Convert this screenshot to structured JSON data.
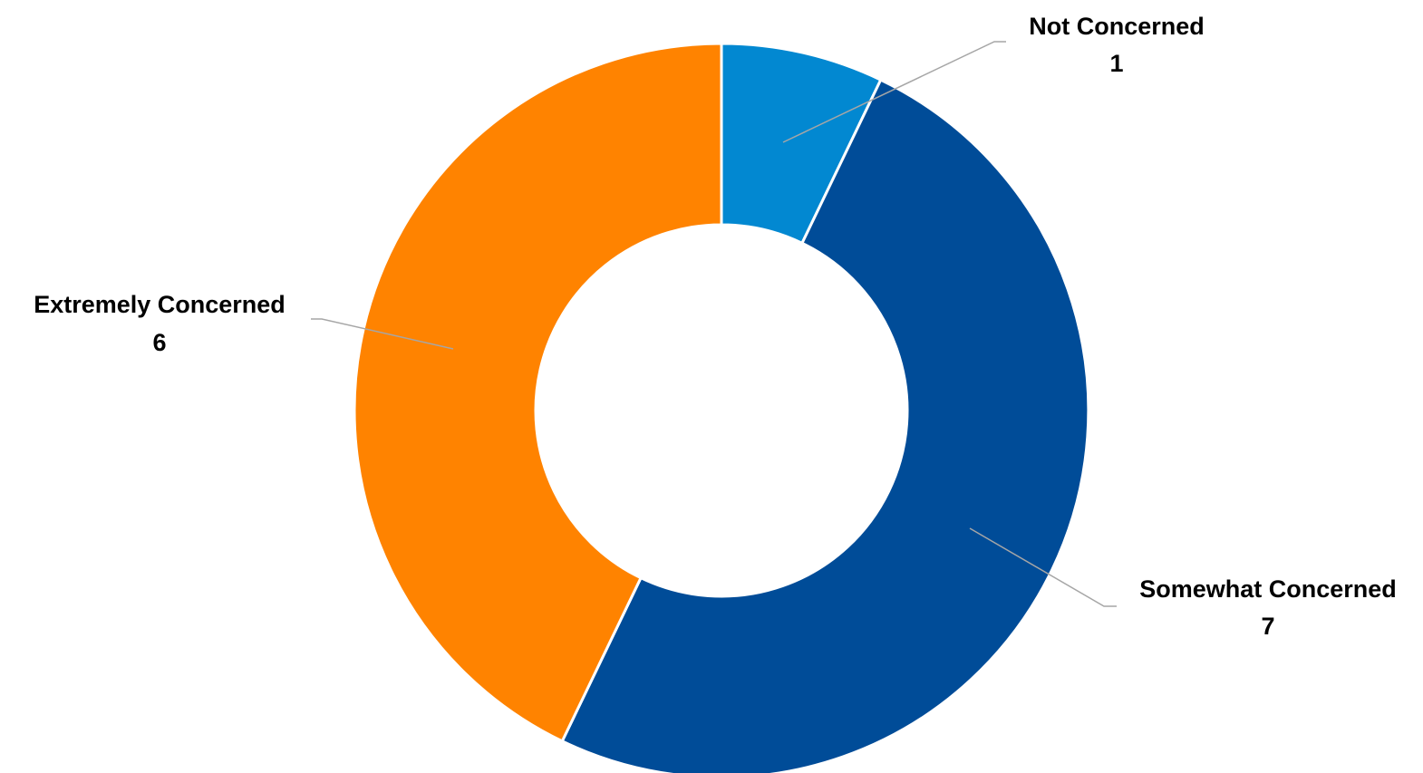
{
  "chart_data": {
    "type": "pie",
    "variant": "donut",
    "start_angle_deg": 0,
    "direction": "clockwise",
    "legend": "none",
    "data_labels": "category-and-value-outside-with-leader-lines",
    "slices": [
      {
        "category": "Not Concerned",
        "value": 1,
        "value_label": "1",
        "color": "#0288d1"
      },
      {
        "category": "Somewhat Concerned",
        "value": 7,
        "value_label": "7",
        "color": "#004c98"
      },
      {
        "category": "Extremely Concerned",
        "value": 6,
        "value_label": "6",
        "color": "#ff8300"
      }
    ]
  }
}
